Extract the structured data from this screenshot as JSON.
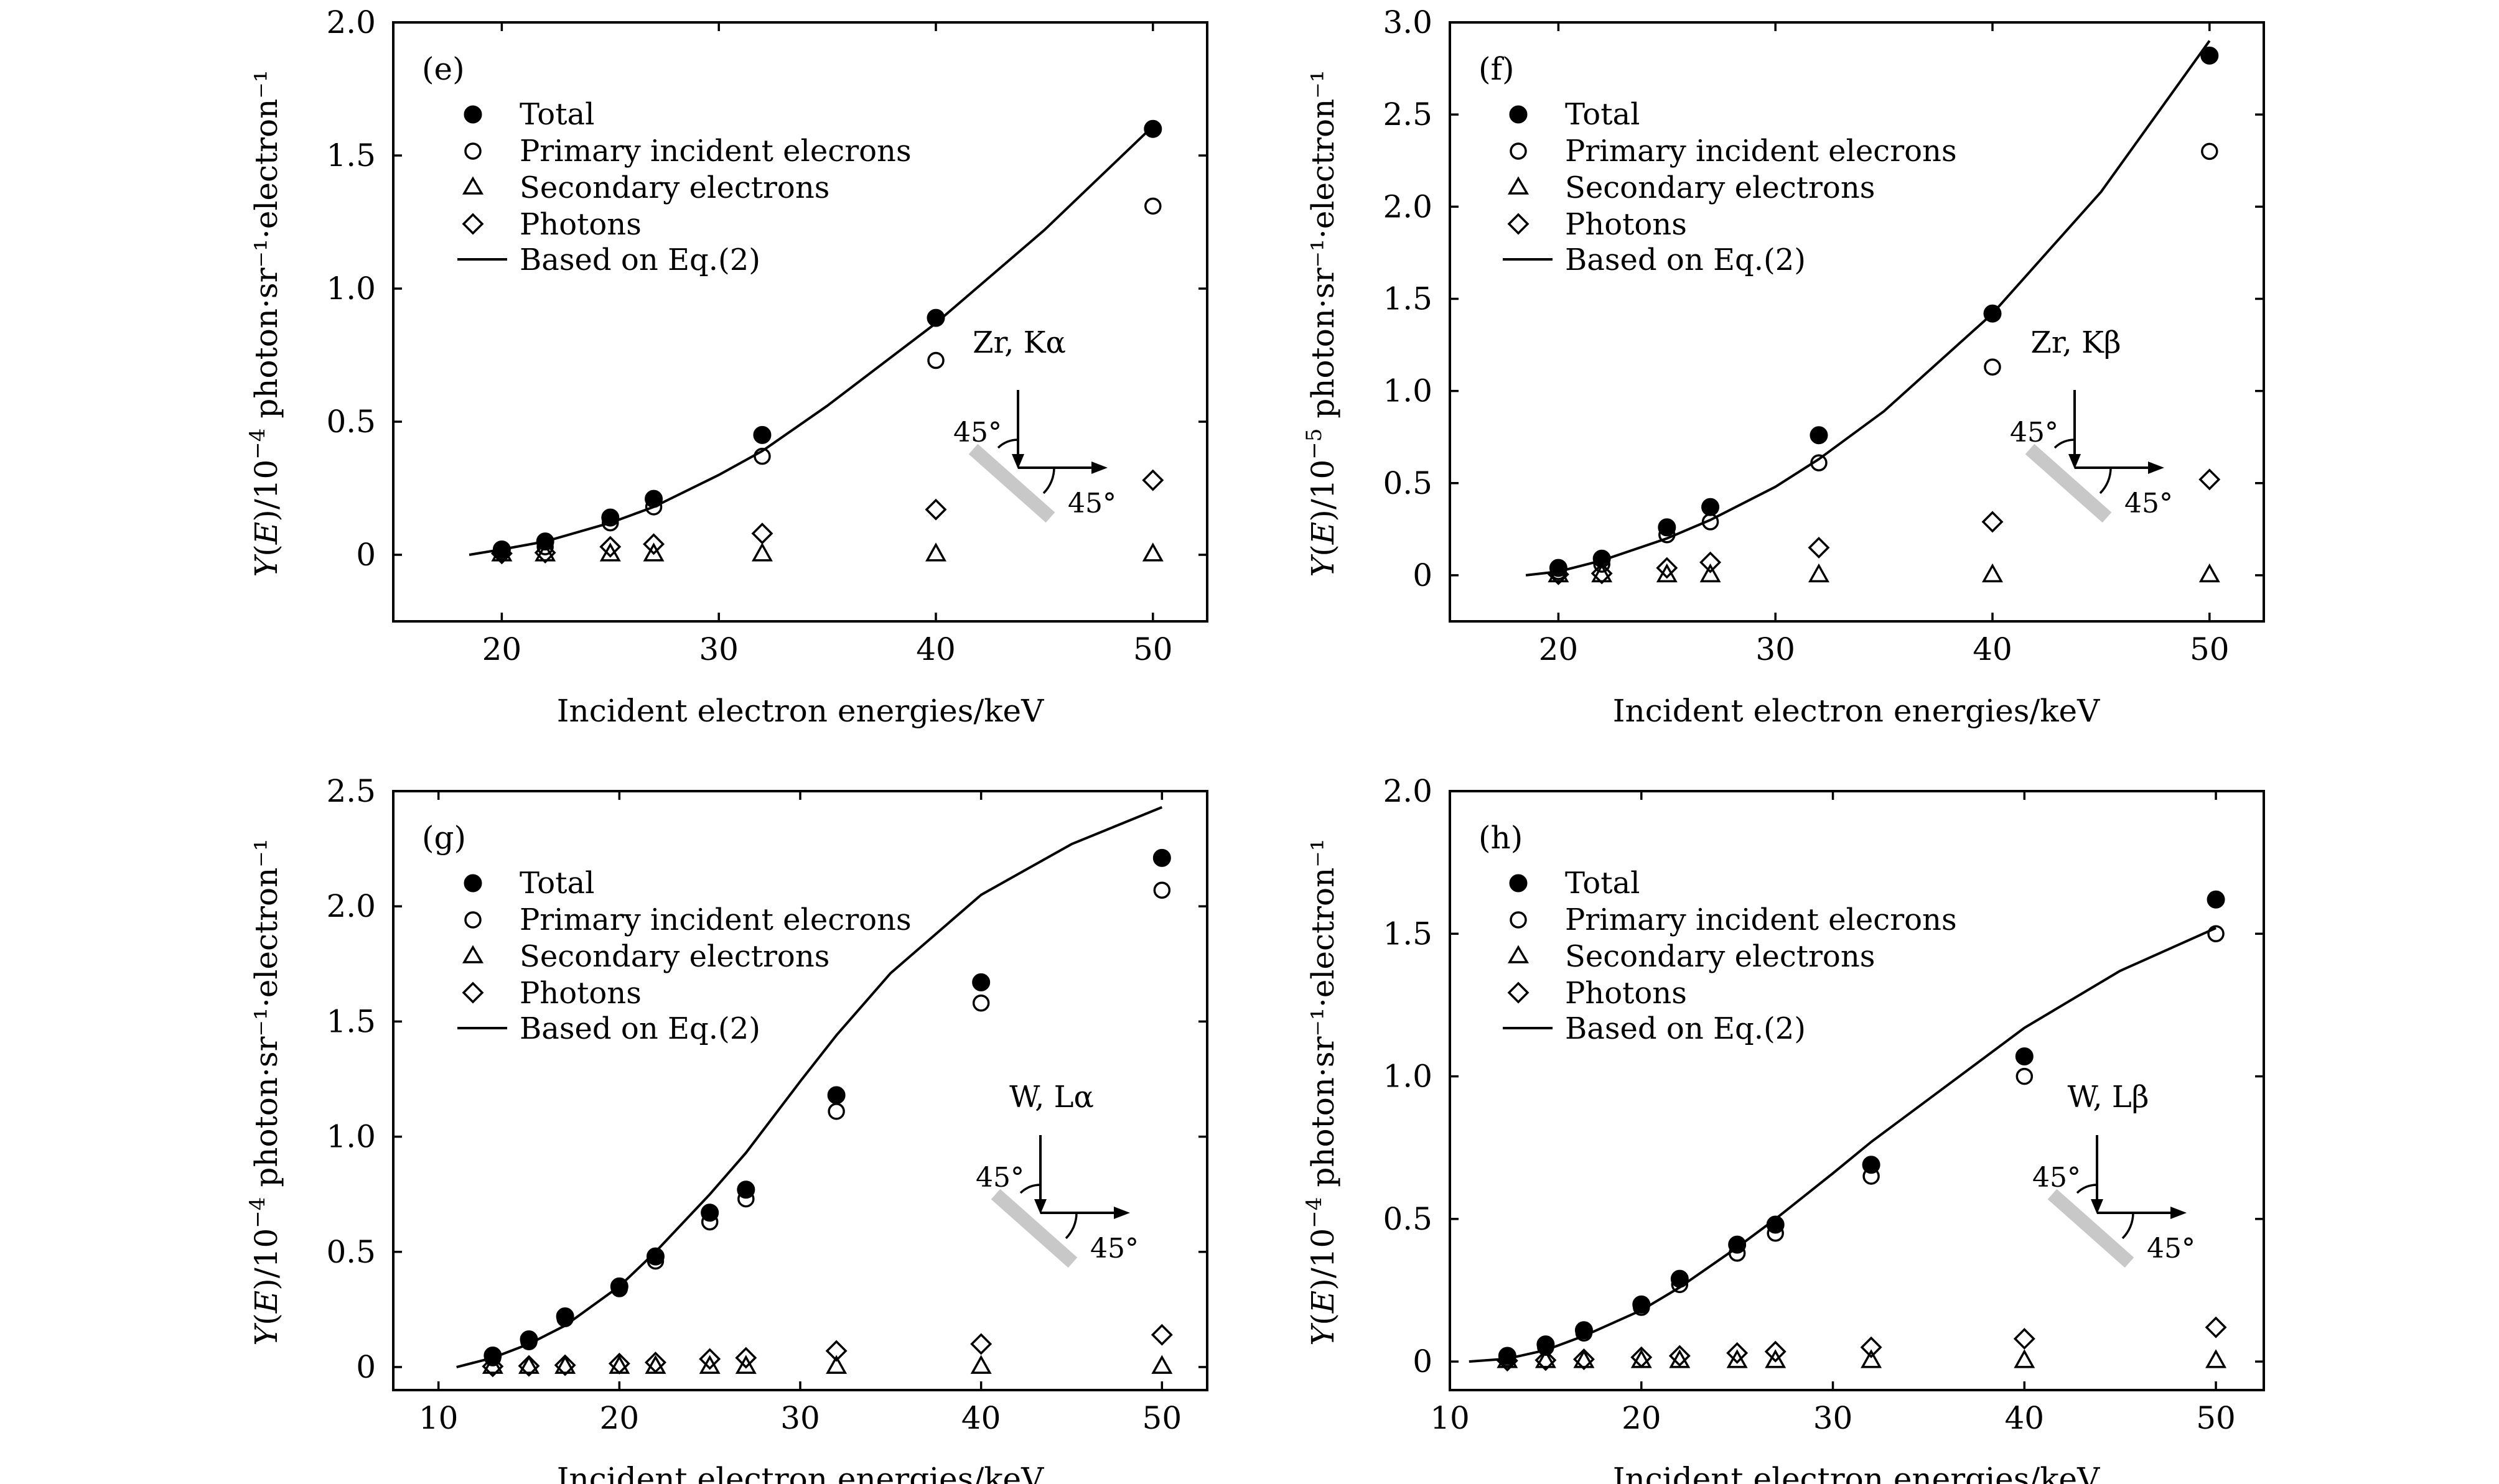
{
  "figure": {
    "x_label": "Incident electron energies/keV",
    "legend": {
      "total": "Total",
      "primary": "Primary incident elecrons",
      "secondary": "Secondary electrons",
      "photons": "Photons",
      "model": "Based on Eq.(2)"
    },
    "angle_label": "45°"
  },
  "chart_data": [
    {
      "type": "scatter",
      "panel_label": "(e)",
      "annotation": "Zr, Kα",
      "title": "",
      "xlabel": "Incident electron energies/keV",
      "ylabel": {
        "prefix": "Y(E)/10",
        "exp": "−4",
        "suffix": " photon·sr⁻¹·electron⁻¹",
        "full": "Y(E)/10−4 photon·sr−1·electron−1"
      },
      "xlim": [
        15,
        52.5
      ],
      "ylim": [
        -0.25,
        2.0
      ],
      "xticks": [
        20,
        30,
        40,
        50
      ],
      "yticks": [
        0,
        0.5,
        1.0,
        1.5,
        2.0
      ],
      "ytick_labels": [
        "0",
        "0.5",
        "1.0",
        "1.5",
        "2.0"
      ],
      "x": [
        20,
        22,
        25,
        27,
        32,
        40,
        50
      ],
      "series": [
        {
          "name": "Total",
          "marker": "filled-circle",
          "values": [
            0.02,
            0.05,
            0.14,
            0.21,
            0.45,
            0.89,
            1.6
          ]
        },
        {
          "name": "Primary incident elecrons",
          "marker": "open-circle",
          "values": [
            0.01,
            0.03,
            0.12,
            0.18,
            0.37,
            0.73,
            1.31
          ]
        },
        {
          "name": "Secondary electrons",
          "marker": "open-triangle",
          "values": [
            0.005,
            0.005,
            0.005,
            0.005,
            0.005,
            0.005,
            0.005
          ]
        },
        {
          "name": "Photons",
          "marker": "open-diamond",
          "values": [
            0.005,
            0.008,
            0.03,
            0.04,
            0.08,
            0.17,
            0.28
          ]
        }
      ],
      "curve": {
        "name": "Based on Eq.(2)",
        "x": [
          18.5,
          20,
          22,
          25,
          27,
          30,
          32,
          35,
          40,
          45,
          50
        ],
        "y": [
          0.0,
          0.02,
          0.05,
          0.12,
          0.18,
          0.3,
          0.39,
          0.56,
          0.87,
          1.22,
          1.61
        ]
      }
    },
    {
      "type": "scatter",
      "panel_label": "(f)",
      "annotation": "Zr, Kβ",
      "title": "",
      "xlabel": "Incident electron energies/keV",
      "ylabel": {
        "prefix": "Y(E)/10",
        "exp": "−5",
        "suffix": " photon·sr⁻¹·electron⁻¹",
        "full": "Y(E)/10−5 photon·sr−1·electron−1"
      },
      "xlim": [
        15,
        52.5
      ],
      "ylim": [
        -0.25,
        3.0
      ],
      "xticks": [
        20,
        30,
        40,
        50
      ],
      "yticks": [
        0,
        0.5,
        1.0,
        1.5,
        2.0,
        2.5,
        3.0
      ],
      "ytick_labels": [
        "0",
        "0.5",
        "1.0",
        "1.5",
        "2.0",
        "2.5",
        "3.0"
      ],
      "x": [
        20,
        22,
        25,
        27,
        32,
        40,
        50
      ],
      "series": [
        {
          "name": "Total",
          "marker": "filled-circle",
          "values": [
            0.04,
            0.09,
            0.26,
            0.37,
            0.76,
            1.42,
            2.82
          ]
        },
        {
          "name": "Primary incident elecrons",
          "marker": "open-circle",
          "values": [
            0.02,
            0.06,
            0.22,
            0.29,
            0.61,
            1.13,
            2.3
          ]
        },
        {
          "name": "Secondary electrons",
          "marker": "open-triangle",
          "values": [
            0.005,
            0.005,
            0.005,
            0.005,
            0.005,
            0.005,
            0.005
          ]
        },
        {
          "name": "Photons",
          "marker": "open-diamond",
          "values": [
            0.005,
            0.01,
            0.04,
            0.07,
            0.15,
            0.29,
            0.52
          ]
        }
      ],
      "curve": {
        "name": "Based on Eq.(2)",
        "x": [
          18.5,
          20,
          22,
          25,
          27,
          30,
          32,
          35,
          40,
          45,
          50
        ],
        "y": [
          0.0,
          0.02,
          0.08,
          0.2,
          0.3,
          0.48,
          0.63,
          0.89,
          1.42,
          2.08,
          2.9
        ]
      }
    },
    {
      "type": "scatter",
      "panel_label": "(g)",
      "annotation": "W, Lα",
      "title": "",
      "xlabel": "Incident electron energies/keV",
      "ylabel": {
        "prefix": "Y(E)/10",
        "exp": "−4",
        "suffix": " photon·sr⁻¹·electron⁻¹",
        "full": "Y(E)/10−4 photon·sr−1·electron−1"
      },
      "xlim": [
        7.5,
        52.5
      ],
      "ylim": [
        -0.1,
        2.5
      ],
      "xticks": [
        10,
        20,
        30,
        40,
        50
      ],
      "yticks": [
        0,
        0.5,
        1.0,
        1.5,
        2.0,
        2.5
      ],
      "ytick_labels": [
        "0",
        "0.5",
        "1.0",
        "1.5",
        "2.0",
        "2.5"
      ],
      "x": [
        13,
        15,
        17,
        20,
        22,
        25,
        27,
        32,
        40,
        50
      ],
      "series": [
        {
          "name": "Total",
          "marker": "filled-circle",
          "values": [
            0.05,
            0.12,
            0.22,
            0.35,
            0.48,
            0.67,
            0.77,
            1.18,
            1.67,
            2.21
          ]
        },
        {
          "name": "Primary incident elecrons",
          "marker": "open-circle",
          "values": [
            0.04,
            0.11,
            0.21,
            0.34,
            0.46,
            0.63,
            0.73,
            1.11,
            1.58,
            2.07
          ]
        },
        {
          "name": "Secondary electrons",
          "marker": "open-triangle",
          "values": [
            0.005,
            0.005,
            0.005,
            0.005,
            0.005,
            0.005,
            0.005,
            0.005,
            0.005,
            0.005
          ]
        },
        {
          "name": "Photons",
          "marker": "open-diamond",
          "values": [
            0.003,
            0.005,
            0.008,
            0.015,
            0.02,
            0.035,
            0.04,
            0.07,
            0.1,
            0.14
          ]
        }
      ],
      "curve": {
        "name": "Based on Eq.(2)",
        "x": [
          11,
          13,
          15,
          17,
          20,
          22,
          25,
          27,
          30,
          32,
          35,
          40,
          45,
          50
        ],
        "y": [
          0.0,
          0.04,
          0.1,
          0.18,
          0.35,
          0.5,
          0.75,
          0.93,
          1.24,
          1.44,
          1.71,
          2.05,
          2.27,
          2.43
        ]
      }
    },
    {
      "type": "scatter",
      "panel_label": "(h)",
      "annotation": "W, Lβ",
      "title": "",
      "xlabel": "Incident electron energies/keV",
      "ylabel": {
        "prefix": "Y(E)/10",
        "exp": "−4",
        "suffix": " photon·sr⁻¹·electron⁻¹",
        "full": "Y(E)/10−4 photon·sr−1·electron−1"
      },
      "xlim": [
        10,
        52.5
      ],
      "ylim": [
        -0.1,
        2.0
      ],
      "xticks": [
        10,
        20,
        30,
        40,
        50
      ],
      "yticks": [
        0,
        0.5,
        1.0,
        1.5,
        2.0
      ],
      "ytick_labels": [
        "0",
        "0.5",
        "1.0",
        "1.5",
        "2.0"
      ],
      "x": [
        13,
        15,
        17,
        20,
        22,
        25,
        27,
        32,
        40,
        50
      ],
      "series": [
        {
          "name": "Total",
          "marker": "filled-circle",
          "values": [
            0.02,
            0.06,
            0.11,
            0.2,
            0.29,
            0.41,
            0.48,
            0.69,
            1.07,
            1.62
          ]
        },
        {
          "name": "Primary incident elecrons",
          "marker": "open-circle",
          "values": [
            0.01,
            0.05,
            0.1,
            0.19,
            0.27,
            0.38,
            0.45,
            0.65,
            1.0,
            1.5
          ]
        },
        {
          "name": "Secondary electrons",
          "marker": "open-triangle",
          "values": [
            0.005,
            0.005,
            0.005,
            0.005,
            0.005,
            0.005,
            0.005,
            0.005,
            0.005,
            0.005
          ]
        },
        {
          "name": "Photons",
          "marker": "open-diamond",
          "values": [
            0.003,
            0.005,
            0.008,
            0.015,
            0.02,
            0.03,
            0.035,
            0.05,
            0.08,
            0.12
          ]
        }
      ],
      "curve": {
        "name": "Based on Eq.(2)",
        "x": [
          11,
          13,
          15,
          17,
          20,
          22,
          25,
          27,
          30,
          32,
          35,
          40,
          45,
          50
        ],
        "y": [
          0.0,
          0.01,
          0.04,
          0.09,
          0.18,
          0.26,
          0.4,
          0.5,
          0.66,
          0.77,
          0.92,
          1.17,
          1.37,
          1.52
        ]
      }
    }
  ]
}
